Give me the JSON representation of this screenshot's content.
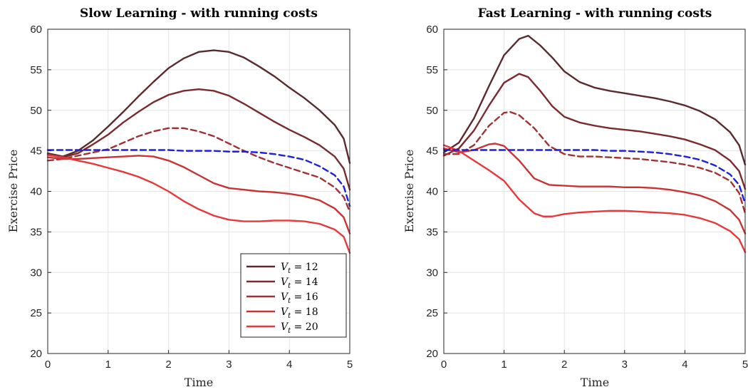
{
  "chart_data": [
    {
      "type": "line",
      "title": "Slow Learning - with running costs",
      "xlabel": "Time",
      "ylabel": "Exercise Price",
      "xlim": [
        0,
        5
      ],
      "ylim": [
        20,
        60
      ],
      "xticks": [
        "0",
        "1",
        "2",
        "3",
        "4",
        "5"
      ],
      "yticks": [
        "20",
        "25",
        "30",
        "35",
        "40",
        "45",
        "50",
        "55",
        "60"
      ],
      "grid": true,
      "legend_placement": "bottom-right",
      "legend": [
        {
          "var": "V",
          "sub": "t",
          "rest": " = 12",
          "color": "#5a2a2c"
        },
        {
          "var": "V",
          "sub": "t",
          "rest": " = 14",
          "color": "#7b2a2d"
        },
        {
          "var": "V",
          "sub": "t",
          "rest": " = 16",
          "color": "#a33033"
        },
        {
          "var": "V",
          "sub": "t",
          "rest": " = 18",
          "color": "#c93335"
        },
        {
          "var": "V",
          "sub": "t",
          "rest": " = 20",
          "color": "#e8383b"
        }
      ],
      "series": [
        {
          "color": "#5a2a2c",
          "dash": false,
          "x": [
            0,
            0.25,
            0.5,
            0.75,
            1,
            1.25,
            1.5,
            1.75,
            2,
            2.25,
            2.5,
            2.75,
            3,
            3.25,
            3.5,
            3.75,
            4,
            4.25,
            4.5,
            4.75,
            4.9,
            5
          ],
          "y": [
            44.7,
            44.3,
            45.0,
            46.3,
            48.0,
            49.8,
            51.7,
            53.5,
            55.2,
            56.4,
            57.2,
            57.4,
            57.2,
            56.5,
            55.4,
            54.2,
            52.8,
            51.5,
            50.0,
            48.2,
            46.5,
            43.5
          ]
        },
        {
          "color": "#7b2a2d",
          "dash": false,
          "x": [
            0,
            0.25,
            0.5,
            0.75,
            1,
            1.25,
            1.5,
            1.75,
            2,
            2.25,
            2.5,
            2.75,
            3,
            3.25,
            3.5,
            3.75,
            4,
            4.25,
            4.5,
            4.75,
            4.9,
            5
          ],
          "y": [
            44.5,
            44.2,
            44.7,
            45.8,
            47.0,
            48.5,
            49.8,
            51.0,
            51.9,
            52.4,
            52.6,
            52.4,
            51.8,
            50.8,
            49.7,
            48.6,
            47.6,
            46.7,
            45.7,
            44.3,
            42.8,
            40.2
          ]
        },
        {
          "color": "#a33033",
          "dash": true,
          "x": [
            0,
            0.25,
            0.5,
            0.75,
            1,
            1.25,
            1.5,
            1.75,
            2,
            2.25,
            2.5,
            2.75,
            3,
            3.25,
            3.5,
            3.75,
            4,
            4.25,
            4.5,
            4.75,
            4.9,
            5
          ],
          "y": [
            43.8,
            44.0,
            44.4,
            44.8,
            45.2,
            46.0,
            46.8,
            47.4,
            47.8,
            47.8,
            47.4,
            46.8,
            45.9,
            45.0,
            44.2,
            43.5,
            42.9,
            42.3,
            41.7,
            40.5,
            39.3,
            37.5
          ]
        },
        {
          "color": "#c93335",
          "dash": false,
          "x": [
            0,
            0.25,
            0.5,
            0.75,
            1,
            1.25,
            1.5,
            1.75,
            2,
            2.25,
            2.5,
            2.75,
            3,
            3.25,
            3.5,
            3.75,
            4,
            4.25,
            4.5,
            4.75,
            4.9,
            5
          ],
          "y": [
            44.2,
            44.0,
            44.0,
            44.1,
            44.2,
            44.3,
            44.4,
            44.3,
            43.8,
            43.0,
            42.0,
            41.0,
            40.4,
            40.2,
            40.0,
            39.9,
            39.7,
            39.4,
            38.9,
            37.9,
            36.8,
            34.8
          ]
        },
        {
          "color": "#e8383b",
          "dash": false,
          "x": [
            0,
            0.25,
            0.5,
            0.75,
            1,
            1.25,
            1.5,
            1.75,
            2,
            2.25,
            2.5,
            2.75,
            3,
            3.25,
            3.5,
            3.75,
            4,
            4.25,
            4.5,
            4.75,
            4.9,
            5
          ],
          "y": [
            44.5,
            44.2,
            43.8,
            43.4,
            42.9,
            42.4,
            41.8,
            41.0,
            40.0,
            38.8,
            37.8,
            37.0,
            36.5,
            36.3,
            36.3,
            36.4,
            36.4,
            36.3,
            36.0,
            35.3,
            34.4,
            32.4
          ]
        },
        {
          "color": "#1f1fe0",
          "dash": true,
          "x": [
            0,
            0.25,
            0.5,
            0.75,
            1,
            1.25,
            1.5,
            1.75,
            2,
            2.25,
            2.5,
            2.75,
            3,
            3.25,
            3.5,
            3.75,
            4,
            4.25,
            4.5,
            4.75,
            4.9,
            5
          ],
          "y": [
            45.1,
            45.1,
            45.1,
            45.1,
            45.1,
            45.1,
            45.1,
            45.1,
            45.1,
            45.0,
            45.0,
            45.0,
            44.9,
            44.9,
            44.8,
            44.6,
            44.3,
            43.9,
            43.1,
            42.0,
            40.6,
            38.2
          ]
        }
      ]
    },
    {
      "type": "line",
      "title": "Fast Learning - with running costs",
      "xlabel": "Time",
      "ylabel": "Exercise Price",
      "xlim": [
        0,
        5
      ],
      "ylim": [
        20,
        60
      ],
      "xticks": [
        "0",
        "1",
        "2",
        "3",
        "4",
        "5"
      ],
      "yticks": [
        "20",
        "25",
        "30",
        "35",
        "40",
        "45",
        "50",
        "55",
        "60"
      ],
      "grid": true,
      "series": [
        {
          "color": "#5a2a2c",
          "dash": false,
          "x": [
            0,
            0.25,
            0.5,
            0.75,
            1,
            1.25,
            1.4,
            1.6,
            1.8,
            2,
            2.25,
            2.5,
            2.75,
            3,
            3.25,
            3.5,
            3.75,
            4,
            4.25,
            4.5,
            4.75,
            4.9,
            5
          ],
          "y": [
            44.8,
            46.0,
            49.0,
            53.0,
            56.8,
            58.8,
            59.2,
            58.0,
            56.5,
            54.8,
            53.5,
            52.8,
            52.4,
            52.1,
            51.8,
            51.5,
            51.1,
            50.6,
            49.9,
            48.9,
            47.3,
            45.7,
            43.3
          ]
        },
        {
          "color": "#7b2a2d",
          "dash": false,
          "x": [
            0,
            0.25,
            0.5,
            0.75,
            1,
            1.25,
            1.4,
            1.6,
            1.8,
            2,
            2.25,
            2.5,
            2.75,
            3,
            3.25,
            3.5,
            3.75,
            4,
            4.25,
            4.5,
            4.75,
            4.9,
            5
          ],
          "y": [
            44.4,
            45.3,
            47.5,
            50.6,
            53.4,
            54.5,
            54.1,
            52.4,
            50.5,
            49.2,
            48.5,
            48.1,
            47.8,
            47.6,
            47.4,
            47.1,
            46.8,
            46.4,
            45.8,
            45.1,
            43.8,
            42.5,
            40.3
          ]
        },
        {
          "color": "#a33033",
          "dash": true,
          "x": [
            0,
            0.25,
            0.5,
            0.75,
            1,
            1.1,
            1.25,
            1.5,
            1.75,
            2,
            2.25,
            2.5,
            2.75,
            3,
            3.25,
            3.5,
            3.75,
            4,
            4.25,
            4.5,
            4.75,
            4.9,
            5
          ],
          "y": [
            44.6,
            44.6,
            45.7,
            48.1,
            49.7,
            49.8,
            49.4,
            47.8,
            45.6,
            44.6,
            44.3,
            44.3,
            44.2,
            44.1,
            44.0,
            43.8,
            43.6,
            43.3,
            42.9,
            42.3,
            41.3,
            39.8,
            37.3
          ]
        },
        {
          "color": "#c93335",
          "dash": false,
          "x": [
            0,
            0.25,
            0.5,
            0.75,
            0.85,
            1,
            1.25,
            1.5,
            1.75,
            2,
            2.25,
            2.5,
            2.75,
            3,
            3.25,
            3.5,
            3.75,
            4,
            4.25,
            4.5,
            4.75,
            4.9,
            5
          ],
          "y": [
            45.3,
            44.8,
            45.1,
            45.8,
            45.9,
            45.6,
            43.8,
            41.6,
            40.8,
            40.7,
            40.6,
            40.6,
            40.6,
            40.5,
            40.5,
            40.4,
            40.2,
            39.9,
            39.5,
            38.8,
            37.7,
            36.5,
            34.8
          ]
        },
        {
          "color": "#e8383b",
          "dash": false,
          "x": [
            0,
            0.25,
            0.5,
            0.75,
            1,
            1.25,
            1.5,
            1.65,
            1.8,
            2,
            2.25,
            2.5,
            2.75,
            3,
            3.25,
            3.5,
            3.75,
            4,
            4.25,
            4.5,
            4.75,
            4.9,
            5
          ],
          "y": [
            45.7,
            45.0,
            43.8,
            42.6,
            41.3,
            39.0,
            37.3,
            36.9,
            36.9,
            37.2,
            37.4,
            37.5,
            37.6,
            37.6,
            37.5,
            37.4,
            37.3,
            37.1,
            36.7,
            36.1,
            35.1,
            34.1,
            32.5
          ]
        },
        {
          "color": "#1f1fe0",
          "dash": true,
          "x": [
            0,
            0.25,
            0.5,
            0.75,
            1,
            1.25,
            1.5,
            1.75,
            2,
            2.25,
            2.5,
            2.75,
            3,
            3.25,
            3.5,
            3.75,
            4,
            4.25,
            4.5,
            4.75,
            4.9,
            5
          ],
          "y": [
            45.1,
            45.1,
            45.1,
            45.1,
            45.1,
            45.1,
            45.1,
            45.1,
            45.1,
            45.1,
            45.1,
            45.0,
            45.0,
            44.9,
            44.8,
            44.6,
            44.3,
            43.9,
            43.2,
            42.1,
            40.8,
            38.5
          ]
        }
      ]
    }
  ]
}
